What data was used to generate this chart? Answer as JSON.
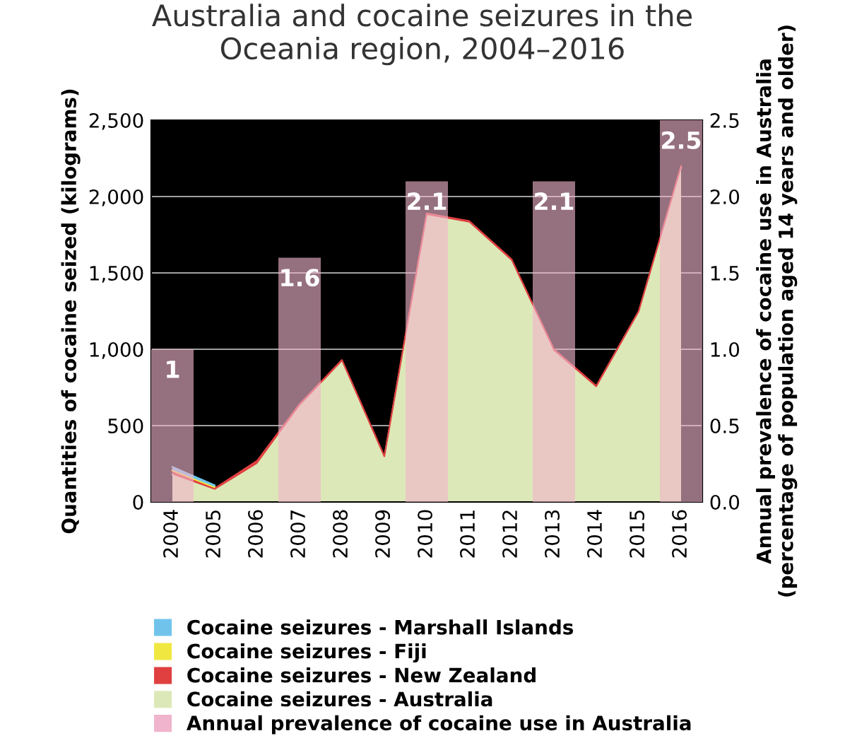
{
  "chart_data": {
    "type": "area",
    "stacked": true,
    "title": "Australia and cocaine seizures in the\nOceania region, 2004–2016",
    "ylabel": "Quantities of cocaine seized (kilograms)",
    "y2label": "Annual prevalence of cocaine use in Australia\n(percentage of population aged 14 years and older)",
    "categories": [
      "2004",
      "2005",
      "2006",
      "2007",
      "2008",
      "2009",
      "2010",
      "2011",
      "2012",
      "2013",
      "2014",
      "2015",
      "2016"
    ],
    "series": [
      {
        "name": "Cocaine seizures - Australia",
        "color": "#dce8b8",
        "values": [
          180,
          80,
          250,
          630,
          920,
          290,
          1880,
          1830,
          1580,
          990,
          750,
          1240,
          2190
        ]
      },
      {
        "name": "Cocaine seizures - New Zealand",
        "color": "#e04040",
        "values": [
          20,
          10,
          20,
          10,
          10,
          10,
          10,
          10,
          10,
          10,
          10,
          10,
          10
        ]
      },
      {
        "name": "Cocaine seizures - Fiji",
        "color": "#f0e840",
        "values": [
          10,
          10,
          null,
          null,
          null,
          null,
          null,
          null,
          null,
          null,
          null,
          null,
          null
        ]
      },
      {
        "name": "Cocaine seizures - Marshall Islands",
        "color": "#70c4ec",
        "values": [
          20,
          10,
          null,
          null,
          null,
          null,
          null,
          null,
          null,
          null,
          null,
          null,
          null
        ]
      },
      {
        "name": "Annual prevalence of cocaine use in Australia",
        "color": "#f0b4cc",
        "type": "bar",
        "axis": "y2",
        "values": [
          1,
          null,
          null,
          1.6,
          null,
          null,
          2.1,
          null,
          null,
          2.1,
          null,
          null,
          2.5
        ],
        "value_labels": [
          "1",
          null,
          null,
          "1.6",
          null,
          null,
          "2.1",
          null,
          null,
          "2.1",
          null,
          null,
          "2.5"
        ]
      }
    ],
    "ylim": [
      0,
      2500
    ],
    "yticks": [
      0,
      {
        "value": 500,
        "label": "500"
      },
      {
        "value": 1000,
        "label": "1,000"
      },
      {
        "value": 1500,
        "label": "1,500"
      },
      {
        "value": 2000,
        "label": "2,000"
      },
      {
        "value": 2500,
        "label": "2,500"
      }
    ],
    "y2lim": [
      0,
      2.5
    ],
    "y2ticks": [
      {
        "value": 0,
        "label": "0.0"
      },
      {
        "value": 0.5,
        "label": "0.5"
      },
      {
        "value": 1,
        "label": "1.0"
      },
      {
        "value": 1.5,
        "label": "1.5"
      },
      {
        "value": 2,
        "label": "2.0"
      },
      {
        "value": 2.5,
        "label": "2.5"
      }
    ],
    "grid": "y",
    "legend": "bottom"
  }
}
